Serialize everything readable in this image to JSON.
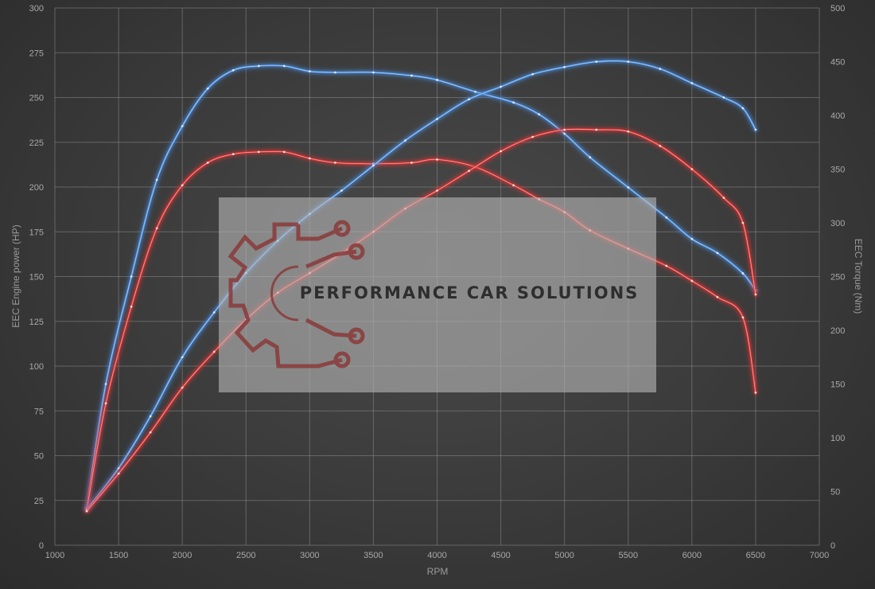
{
  "chart_data": {
    "type": "line",
    "xlabel": "RPM",
    "ylabel_left": "EEC Engine power (HP)",
    "ylabel_right": "EEC Torque (Nm)",
    "xlim": [
      1000,
      7000
    ],
    "ylim_left": [
      0,
      300
    ],
    "ylim_right": [
      0,
      500
    ],
    "x_ticks": [
      1000,
      1500,
      2000,
      2500,
      3000,
      3500,
      4000,
      4500,
      5000,
      5500,
      6000,
      6500,
      7000
    ],
    "y_ticks_left": [
      0,
      25,
      50,
      75,
      100,
      125,
      150,
      175,
      200,
      225,
      250,
      275,
      300
    ],
    "y_ticks_right": [
      0,
      50,
      100,
      150,
      200,
      250,
      300,
      350,
      400,
      450,
      500
    ],
    "grid": true,
    "series": [
      {
        "axis": "right",
        "color": "#4a8ee0",
        "x": [
          1250,
          1400,
          1600,
          1800,
          2000,
          2200,
          2400,
          2600,
          2800,
          3000,
          3200,
          3500,
          3800,
          4000,
          4300,
          4600,
          4800,
          5000,
          5200,
          5500,
          5800,
          6000,
          6200,
          6400,
          6500
        ],
        "y": [
          35,
          150,
          250,
          340,
          390,
          425,
          442,
          446,
          446,
          441,
          440,
          440,
          437,
          433,
          422,
          412,
          401,
          383,
          361,
          333,
          305,
          285,
          272,
          253,
          237
        ]
      },
      {
        "axis": "right",
        "color": "#e03434",
        "x": [
          1250,
          1400,
          1600,
          1800,
          2000,
          2200,
          2400,
          2600,
          2800,
          3000,
          3200,
          3500,
          3800,
          4000,
          4300,
          4600,
          4800,
          5000,
          5200,
          5500,
          5800,
          6000,
          6200,
          6400,
          6500
        ],
        "y": [
          33,
          132,
          222,
          295,
          335,
          356,
          364,
          366,
          366,
          360,
          356,
          355,
          356,
          359,
          352,
          335,
          322,
          310,
          293,
          276,
          260,
          246,
          231,
          212,
          142
        ]
      },
      {
        "axis": "left",
        "color": "#4a8ee0",
        "x": [
          1250,
          1500,
          1750,
          2000,
          2250,
          2500,
          2750,
          3000,
          3250,
          3500,
          3750,
          4000,
          4250,
          4500,
          4750,
          5000,
          5250,
          5500,
          5750,
          6000,
          6250,
          6400,
          6500
        ],
        "y": [
          20,
          43,
          72,
          105,
          130,
          152,
          170,
          185,
          198,
          212,
          226,
          238,
          249,
          256,
          263,
          267,
          270,
          270,
          266,
          258,
          250,
          244,
          232
        ]
      },
      {
        "axis": "left",
        "color": "#e03434",
        "x": [
          1250,
          1500,
          1750,
          2000,
          2250,
          2500,
          2750,
          3000,
          3250,
          3500,
          3750,
          4000,
          4250,
          4500,
          4750,
          5000,
          5250,
          5500,
          5750,
          6000,
          6250,
          6400,
          6500
        ],
        "y": [
          19,
          40,
          63,
          88,
          108,
          126,
          141,
          152,
          163,
          175,
          188,
          198,
          209,
          220,
          228,
          232,
          232,
          231,
          223,
          210,
          194,
          180,
          140
        ]
      }
    ]
  },
  "watermark": {
    "text": "PERFORMANCE CAR SOLUTIONS"
  }
}
